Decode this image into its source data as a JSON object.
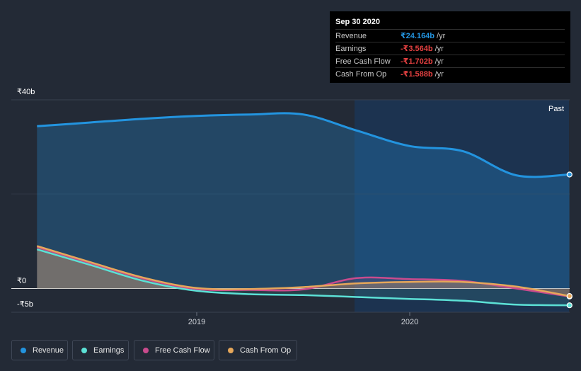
{
  "tooltip": {
    "date": "Sep 30 2020",
    "rows": [
      {
        "label": "Revenue",
        "value": "₹24.164b",
        "unit": "/yr",
        "color": "#2394df"
      },
      {
        "label": "Earnings",
        "value": "-₹3.564b",
        "unit": "/yr",
        "color": "#e64141"
      },
      {
        "label": "Free Cash Flow",
        "value": "-₹1.702b",
        "unit": "/yr",
        "color": "#e64141"
      },
      {
        "label": "Cash From Op",
        "value": "-₹1.588b",
        "unit": "/yr",
        "color": "#e64141"
      }
    ]
  },
  "chart_data": {
    "type": "area",
    "title": "",
    "xlabel": "",
    "ylabel": "",
    "x_tick_labels": [
      "2019",
      "2020"
    ],
    "y_tick_labels": [
      "₹40b",
      "₹0",
      "-₹5b"
    ],
    "ylim": [
      -5,
      40
    ],
    "past_label": "Past",
    "x": [
      2018.25,
      2018.5,
      2018.75,
      2019.0,
      2019.25,
      2019.5,
      2019.75,
      2020.0,
      2020.25,
      2020.5,
      2020.75
    ],
    "series": [
      {
        "name": "Revenue",
        "color": "#2394df",
        "values": [
          34.4,
          35.2,
          36.0,
          36.6,
          36.9,
          36.9,
          33.5,
          30.2,
          29.1,
          24.0,
          24.164
        ]
      },
      {
        "name": "Earnings",
        "color": "#5ce1d6",
        "values": [
          8.3,
          5.0,
          1.6,
          -0.5,
          -1.2,
          -1.4,
          -1.8,
          -2.2,
          -2.6,
          -3.4,
          -3.564
        ]
      },
      {
        "name": "Free Cash Flow",
        "color": "#c94b8d",
        "values": [
          8.8,
          5.4,
          2.1,
          -0.1,
          -0.3,
          -0.2,
          2.2,
          2.0,
          1.6,
          0.0,
          -1.702
        ]
      },
      {
        "name": "Cash From Op",
        "color": "#e6a75a",
        "values": [
          9.0,
          5.6,
          2.3,
          0.1,
          -0.1,
          0.3,
          1.1,
          1.4,
          1.4,
          0.4,
          -1.588
        ]
      }
    ]
  },
  "legend": [
    {
      "label": "Revenue",
      "color": "#2394df"
    },
    {
      "label": "Earnings",
      "color": "#5ce1d6"
    },
    {
      "label": "Free Cash Flow",
      "color": "#c94b8d"
    },
    {
      "label": "Cash From Op",
      "color": "#e6a75a"
    }
  ]
}
